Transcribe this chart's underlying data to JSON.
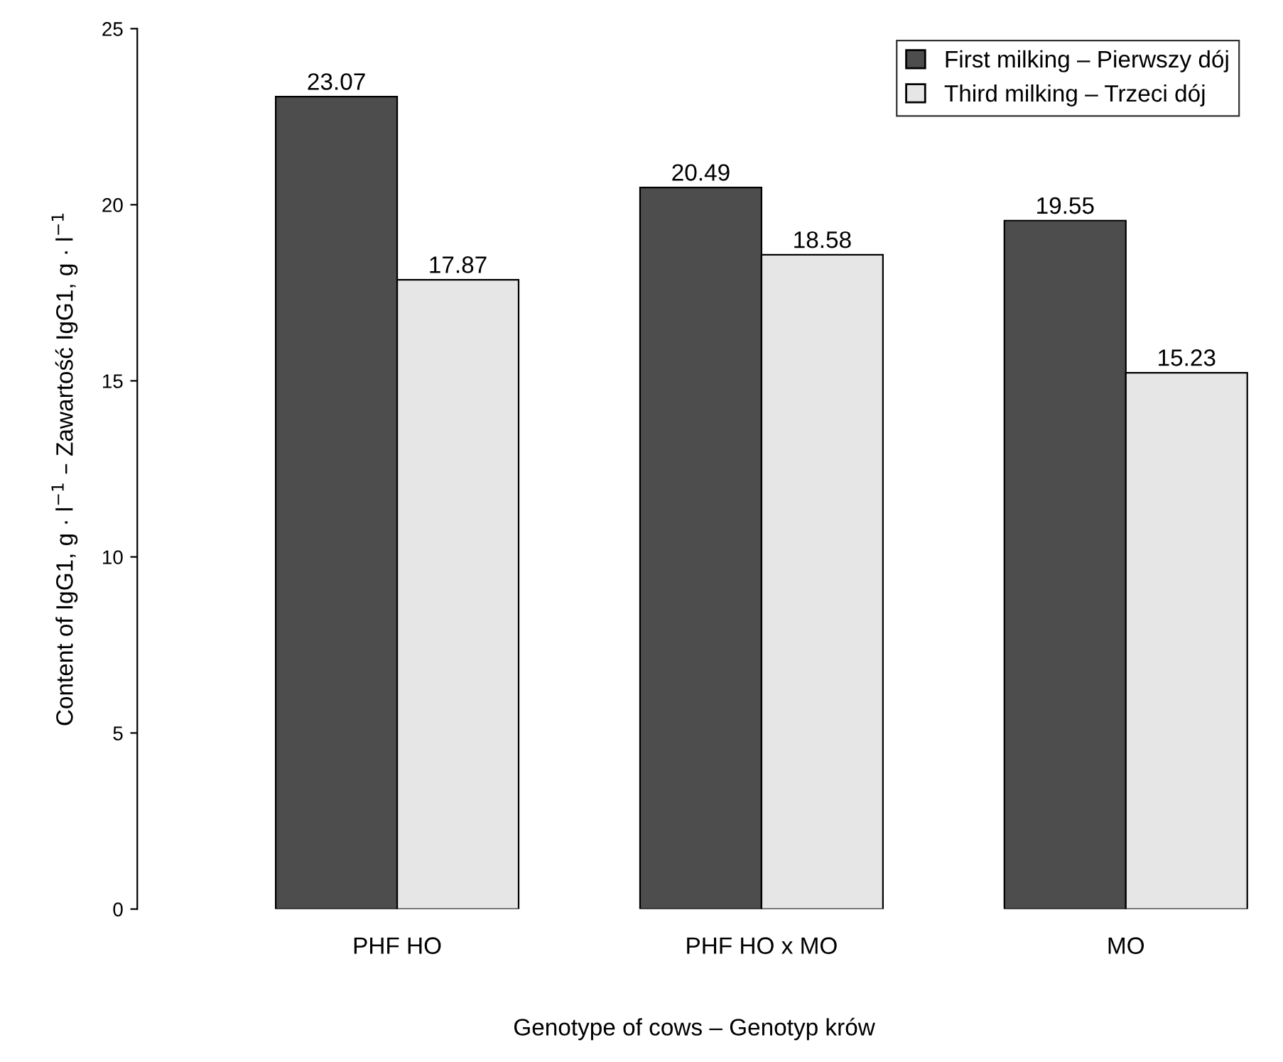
{
  "chart_data": {
    "type": "bar",
    "xlabel": "Genotype of cows – Genotyp krów",
    "ylabel": "Content of IgG1, g · l$^{−1}$ – Zawartość IgG1, g · l$^{−1}$",
    "categories": [
      "PHF HO",
      "PHF HO x MO",
      "MO"
    ],
    "series": [
      {
        "name": "First milking – Pierwszy dój",
        "color": "#4d4d4d",
        "values": [
          23.07,
          20.49,
          19.55
        ]
      },
      {
        "name": "Third milking – Trzeci dój",
        "color": "#e6e6e6",
        "values": [
          17.87,
          18.58,
          15.23
        ]
      }
    ],
    "ylim": [
      0,
      25
    ],
    "yticks": [
      0,
      5,
      10,
      15,
      20,
      25
    ],
    "data_labels": true,
    "legend": "top right",
    "grid": false
  }
}
